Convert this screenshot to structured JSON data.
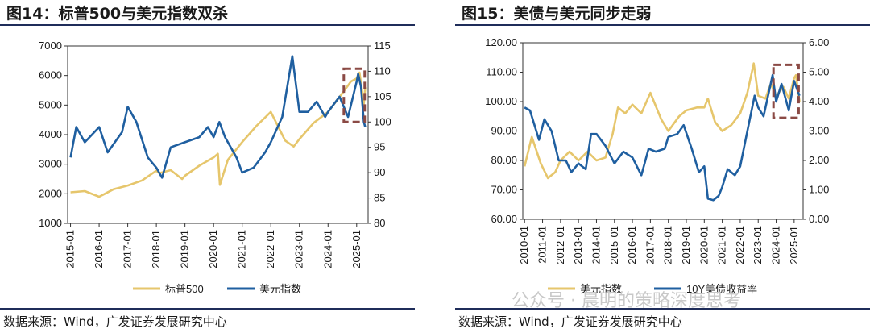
{
  "left": {
    "title": "图14：标普500与美元指数双杀",
    "source": "数据来源：Wind，广发证券发展研究中心"
  },
  "right": {
    "title": "图15：美债与美元同步走弱",
    "source": "数据来源：Wind，广发证券发展研究中心"
  },
  "watermark": "公众号 · 晨明的策略深度思考",
  "colors": {
    "yellow": "#E6C66C",
    "blue": "#1F5FA0",
    "highlight": "#8B4A45",
    "rule": "#1f2d5a"
  },
  "chart_data": [
    {
      "type": "line",
      "x_ticks": [
        "2015-01",
        "2016-01",
        "2017-01",
        "2018-01",
        "2019-01",
        "2020-01",
        "2021-01",
        "2022-01",
        "2023-01",
        "2024-01",
        "2025-01"
      ],
      "y_left": {
        "ticks": [
          1000,
          2000,
          3000,
          4000,
          5000,
          6000,
          7000
        ],
        "lim": [
          1000,
          7000
        ]
      },
      "y_right": {
        "ticks": [
          80,
          85,
          90,
          95,
          100,
          105,
          110,
          115
        ],
        "lim": [
          80,
          115
        ]
      },
      "series": [
        {
          "name": "标普500",
          "axis": "left",
          "color": "#E6C66C",
          "x": [
            2015.0,
            2015.5,
            2016.0,
            2016.5,
            2017.0,
            2017.5,
            2018.0,
            2018.1,
            2018.5,
            2018.9,
            2019.0,
            2019.5,
            2020.0,
            2020.15,
            2020.22,
            2020.5,
            2021.0,
            2021.5,
            2022.0,
            2022.5,
            2022.8,
            2023.0,
            2023.5,
            2024.0,
            2024.5,
            2024.8,
            2025.0,
            2025.1,
            2025.25,
            2025.3
          ],
          "y": [
            2050,
            2090,
            1900,
            2150,
            2280,
            2450,
            2780,
            2700,
            2800,
            2500,
            2610,
            2950,
            3230,
            3350,
            2300,
            3150,
            3750,
            4300,
            4770,
            3800,
            3600,
            3850,
            4400,
            4770,
            5400,
            5800,
            5900,
            6100,
            5050,
            5600
          ]
        },
        {
          "name": "美元指数",
          "axis": "right",
          "color": "#1F5FA0",
          "x": [
            2015.0,
            2015.2,
            2015.5,
            2016.0,
            2016.3,
            2016.8,
            2017.0,
            2017.3,
            2017.7,
            2018.0,
            2018.2,
            2018.5,
            2019.0,
            2019.5,
            2019.8,
            2020.0,
            2020.2,
            2020.4,
            2020.8,
            2021.0,
            2021.4,
            2021.8,
            2022.0,
            2022.4,
            2022.75,
            2023.0,
            2023.3,
            2023.6,
            2023.9,
            2024.0,
            2024.4,
            2024.7,
            2025.0,
            2025.05,
            2025.15,
            2025.25,
            2025.3
          ],
          "y": [
            93,
            99,
            96,
            99,
            94,
            98,
            103,
            100,
            93,
            91,
            89,
            95,
            96,
            97,
            99,
            97,
            100,
            97,
            93,
            90,
            91,
            94,
            96,
            101,
            113,
            102,
            102,
            104,
            101,
            102,
            105,
            101,
            108,
            109.5,
            107,
            100,
            99
          ]
        }
      ],
      "highlight": {
        "x": [
          2024.55,
          2025.28
        ],
        "y": [
          100,
          110.5
        ]
      }
    },
    {
      "type": "line",
      "x_ticks": [
        "2010-01",
        "2011-01",
        "2012-01",
        "2013-01",
        "2014-01",
        "2015-01",
        "2016-01",
        "2017-01",
        "2018-01",
        "2019-01",
        "2020-01",
        "2021-01",
        "2022-01",
        "2023-01",
        "2024-01",
        "2025-01"
      ],
      "y_left": {
        "ticks": [
          "60.00",
          "70.00",
          "80.00",
          "90.00",
          "100.00",
          "110.00",
          "120.00"
        ],
        "lim": [
          60,
          120
        ]
      },
      "y_right": {
        "ticks": [
          "0.00",
          "1.00",
          "2.00",
          "3.00",
          "4.00",
          "5.00",
          "6.00"
        ],
        "lim": [
          0,
          6
        ]
      },
      "series": [
        {
          "name": "美元指数",
          "axis": "left",
          "color": "#E6C66C",
          "x": [
            2010.0,
            2010.4,
            2010.9,
            2011.3,
            2011.7,
            2012.0,
            2012.5,
            2013.0,
            2013.5,
            2014.0,
            2014.5,
            2014.9,
            2015.2,
            2015.6,
            2016.0,
            2016.5,
            2017.0,
            2017.6,
            2018.0,
            2018.6,
            2019.0,
            2019.6,
            2020.0,
            2020.2,
            2020.6,
            2021.0,
            2021.5,
            2022.0,
            2022.4,
            2022.75,
            2023.0,
            2023.4,
            2023.7,
            2024.0,
            2024.4,
            2024.7,
            2025.0,
            2025.1,
            2025.3
          ],
          "y": [
            78,
            88,
            79,
            74,
            76,
            80,
            83,
            80,
            83,
            80,
            81,
            89,
            98,
            96,
            99,
            96,
            103,
            94,
            90,
            95,
            97,
            98,
            98,
            101,
            93,
            90,
            92,
            96,
            103,
            113,
            102,
            101,
            106,
            102,
            105,
            101,
            108,
            109,
            100
          ]
        },
        {
          "name": "10Y美债收益率",
          "axis": "right",
          "color": "#1F5FA0",
          "x": [
            2010.0,
            2010.3,
            2010.8,
            2011.1,
            2011.5,
            2011.9,
            2012.3,
            2012.6,
            2013.0,
            2013.4,
            2013.7,
            2014.0,
            2014.5,
            2015.0,
            2015.5,
            2016.0,
            2016.5,
            2016.9,
            2017.3,
            2017.8,
            2018.0,
            2018.5,
            2018.85,
            2019.3,
            2019.7,
            2020.0,
            2020.2,
            2020.5,
            2020.8,
            2021.0,
            2021.3,
            2021.7,
            2022.0,
            2022.4,
            2022.8,
            2023.0,
            2023.3,
            2023.8,
            2024.0,
            2024.3,
            2024.7,
            2025.0,
            2025.3
          ],
          "y": [
            3.8,
            3.7,
            2.7,
            3.4,
            3.0,
            2.0,
            2.0,
            1.6,
            1.9,
            1.7,
            2.9,
            2.9,
            2.5,
            1.9,
            2.3,
            2.1,
            1.5,
            2.4,
            2.3,
            2.4,
            2.8,
            2.9,
            3.2,
            2.4,
            1.6,
            1.8,
            0.7,
            0.65,
            0.8,
            1.1,
            1.7,
            1.5,
            1.8,
            3.0,
            4.2,
            3.8,
            3.5,
            4.9,
            4.0,
            4.6,
            3.7,
            4.7,
            4.2
          ]
        }
      ],
      "highlight": {
        "x": [
          2023.85,
          2025.25
        ],
        "y": [
          3.45,
          5.25
        ]
      }
    }
  ]
}
